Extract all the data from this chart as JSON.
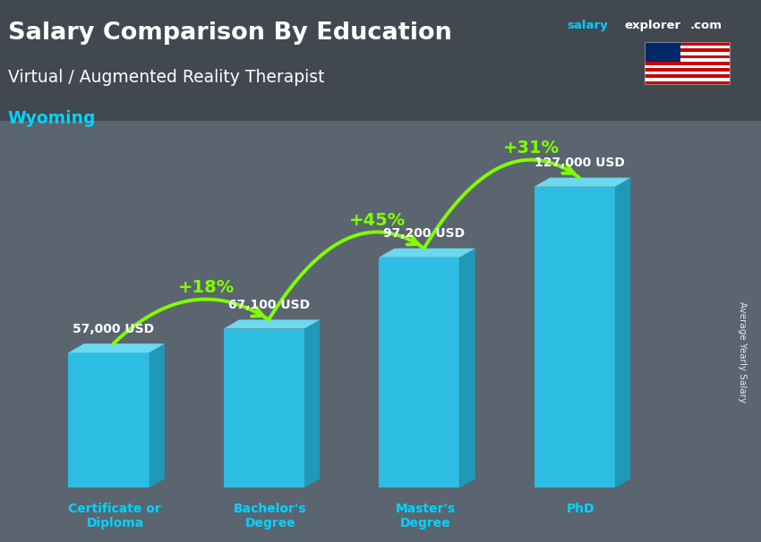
{
  "title_main": "Salary Comparison By Education",
  "title_sub": "Virtual / Augmented Reality Therapist",
  "title_location": "Wyoming",
  "categories": [
    "Certificate or\nDiploma",
    "Bachelor's\nDegree",
    "Master's\nDegree",
    "PhD"
  ],
  "values": [
    57000,
    67100,
    97200,
    127000
  ],
  "value_labels": [
    "57,000 USD",
    "67,100 USD",
    "97,200 USD",
    "127,000 USD"
  ],
  "pct_changes": [
    "+18%",
    "+45%",
    "+31%"
  ],
  "bar_front_color": "#29c7ef",
  "bar_side_color": "#1a9ec0",
  "bar_top_color": "#6de0f7",
  "bg_color": "#5a6570",
  "arrow_color": "#7fff00",
  "text_color_white": "#ffffff",
  "text_color_cyan": "#00d4ff",
  "ylabel": "Average Yearly Salary",
  "site_salary_color": "#00cfff",
  "site_explorer_color": "#ffffff"
}
